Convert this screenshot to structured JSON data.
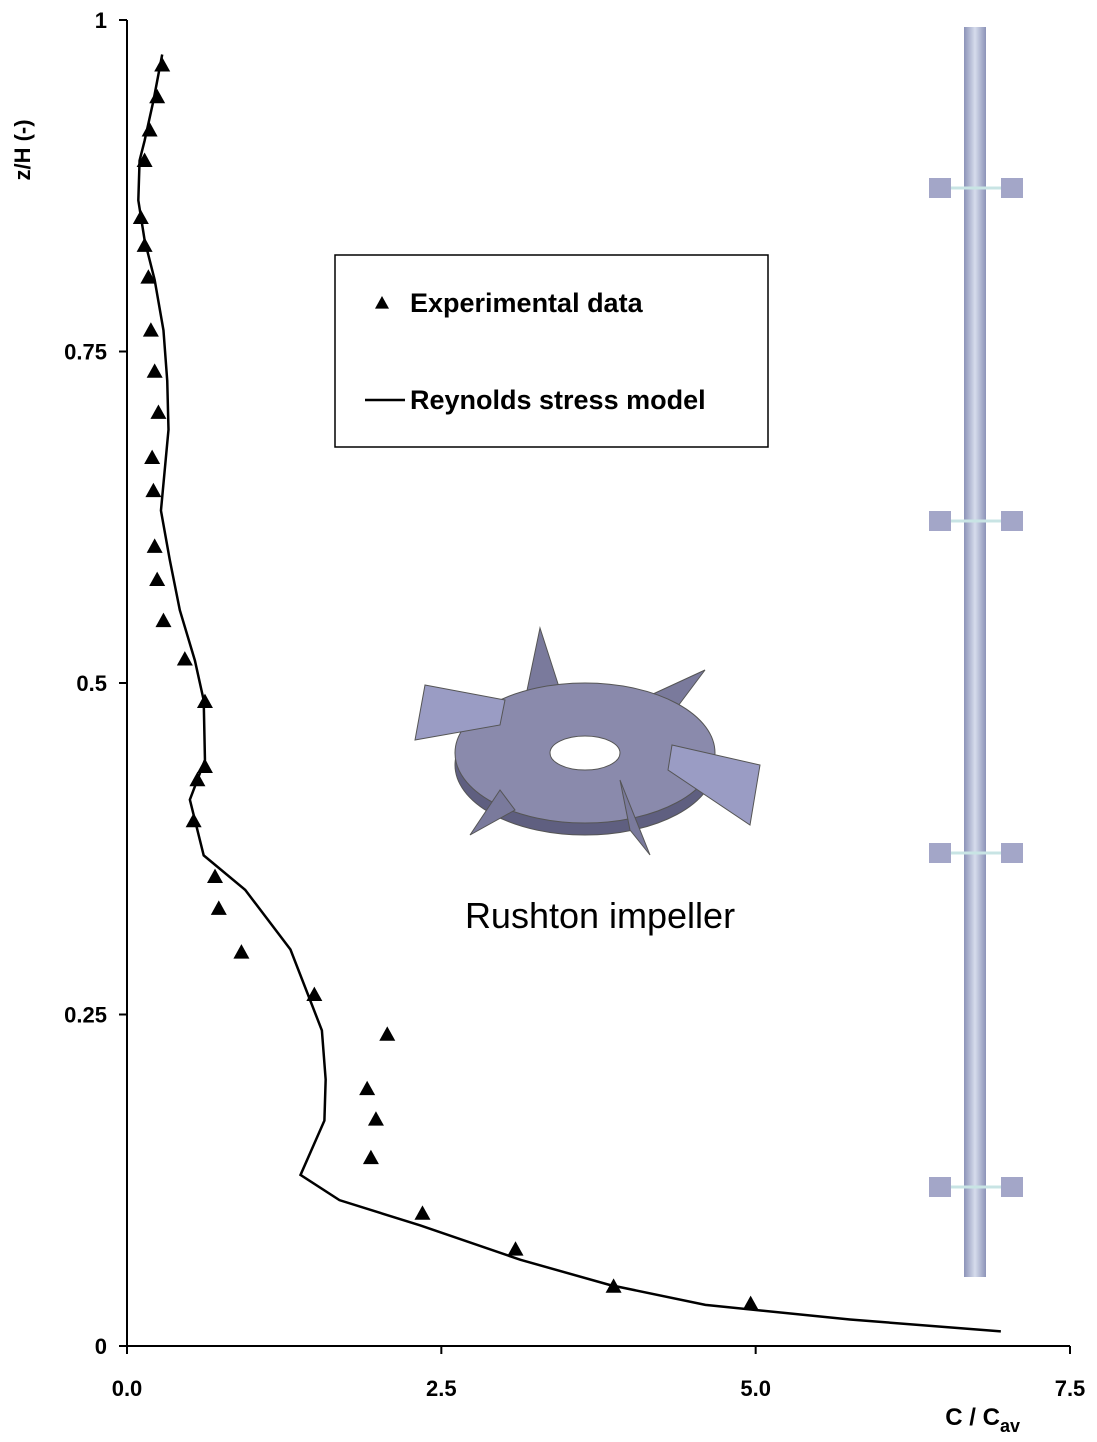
{
  "chart_data": {
    "type": "scatter-line",
    "ylabel": "z/H (-)",
    "xlabel": "C / C",
    "xlabel_sub": "av",
    "annotation": "Rushton impeller",
    "xlim": [
      0,
      7.5
    ],
    "ylim": [
      0,
      1
    ],
    "xticks": [
      {
        "value": 0,
        "label": "0.0"
      },
      2.5,
      {
        "value": 5,
        "label": "5.0"
      },
      7.5
    ],
    "yticks": [
      0,
      0.25,
      0.5,
      0.75,
      1
    ],
    "grid": false,
    "legend": "upper center",
    "series": [
      {
        "name": "Experimental data",
        "kind": "scatter",
        "color": "#000000",
        "x": [
          0.28,
          0.24,
          0.18,
          0.14,
          0.11,
          0.14,
          0.17,
          0.19,
          0.22,
          0.25,
          0.2,
          0.21,
          0.22,
          0.24,
          0.29,
          0.46,
          0.62,
          0.62,
          0.56,
          0.53,
          0.7,
          0.73,
          0.91,
          1.49,
          2.07,
          1.91,
          1.98,
          1.94,
          2.35,
          3.09,
          3.87,
          4.96
        ],
        "values": [
          0.966,
          0.942,
          0.917,
          0.894,
          0.851,
          0.83,
          0.806,
          0.766,
          0.735,
          0.704,
          0.67,
          0.645,
          0.603,
          0.578,
          0.547,
          0.518,
          0.486,
          0.437,
          0.427,
          0.396,
          0.354,
          0.33,
          0.297,
          0.265,
          0.235,
          0.194,
          0.171,
          0.142,
          0.1,
          0.073,
          0.045,
          0.032
        ]
      },
      {
        "name": "Reynolds stress model",
        "kind": "line",
        "color": "#000000",
        "x": [
          0.28,
          0.21,
          0.14,
          0.1,
          0.09,
          0.14,
          0.22,
          0.29,
          0.32,
          0.33,
          0.27,
          0.34,
          0.42,
          0.54,
          0.61,
          0.62,
          0.5,
          0.61,
          0.94,
          1.3,
          1.55,
          1.58,
          1.57,
          1.38,
          1.69,
          2.33,
          3.13,
          3.84,
          4.6,
          5.75,
          6.95
        ],
        "values": [
          0.974,
          0.939,
          0.909,
          0.894,
          0.864,
          0.834,
          0.804,
          0.766,
          0.728,
          0.691,
          0.63,
          0.593,
          0.555,
          0.517,
          0.487,
          0.442,
          0.412,
          0.37,
          0.344,
          0.299,
          0.238,
          0.201,
          0.17,
          0.129,
          0.11,
          0.091,
          0.065,
          0.046,
          0.031,
          0.02,
          0.011
        ]
      }
    ]
  }
}
